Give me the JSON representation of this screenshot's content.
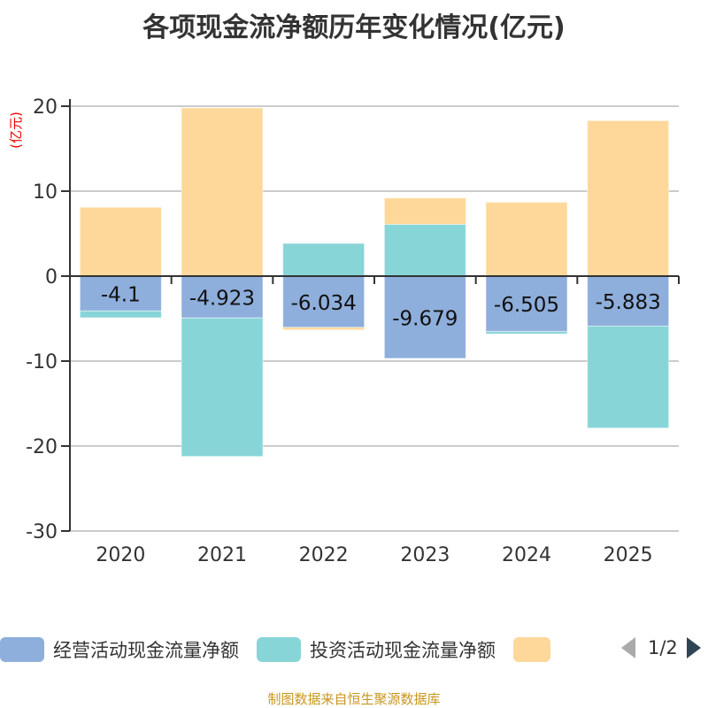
{
  "chart_data": {
    "type": "bar",
    "stacked": true,
    "title": "各项现金流净额历年变化情况(亿元)",
    "ylabel": "(亿元)",
    "ylim": [
      -30,
      20
    ],
    "yticks": [
      20,
      10,
      0,
      -10,
      -20,
      -30
    ],
    "grid": true,
    "legend_position": "bottom",
    "categories": [
      "2020",
      "2021",
      "2022",
      "2023",
      "2024",
      "2025"
    ],
    "series": [
      {
        "name": "经营活动现金流量净额",
        "color": "#8eaedb",
        "values": [
          -4.1,
          -4.923,
          -6.034,
          -9.679,
          -6.505,
          -5.883
        ],
        "labels": [
          "-4.1",
          "-4.923",
          "-6.034",
          "-9.679",
          "-6.505",
          "-5.883"
        ]
      },
      {
        "name": "投资活动现金流量净额",
        "color": "#88d5d8",
        "values": [
          -0.8,
          -16.3,
          3.85,
          6.1,
          -0.3,
          -12.0
        ]
      },
      {
        "name": "",
        "color": "#fed89a",
        "values": [
          8.1,
          19.8,
          -0.3,
          3.1,
          8.7,
          18.3
        ]
      }
    ]
  },
  "legend": {
    "page": "1/2"
  },
  "source": "制图数据来自恒生聚源数据库"
}
